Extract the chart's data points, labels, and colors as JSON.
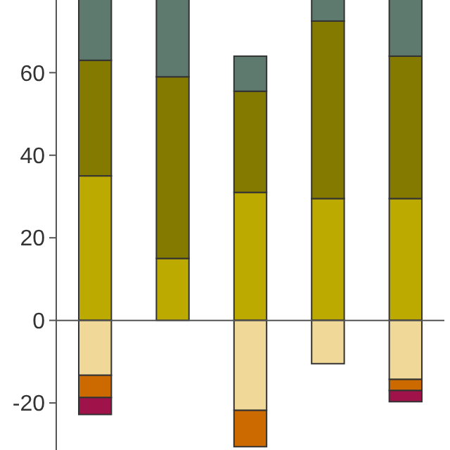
{
  "chart_data": {
    "type": "bar",
    "stacked": true,
    "categories": [
      null,
      null,
      null,
      null,
      null
    ],
    "series": [
      {
        "color": "#bdaa00",
        "values": [
          35,
          15,
          31,
          29.5,
          29.5
        ]
      },
      {
        "color": "#857a00",
        "values": [
          28,
          44,
          24.5,
          43,
          34.5
        ]
      },
      {
        "color": "#5e7a6e",
        "values": [
          14.8,
          18.8,
          8.5,
          5.3,
          13.8
        ]
      },
      {
        "color": "#f0d898",
        "values": [
          -13.3,
          null,
          -21.8,
          -10.5,
          -14.3
        ]
      },
      {
        "color": "#cc6a00",
        "values": [
          -5.4,
          null,
          -8.8,
          null,
          -2.7
        ]
      },
      {
        "color": "#a0124a",
        "values": [
          -4.1,
          null,
          null,
          null,
          -2.7
        ]
      }
    ],
    "ylim": [
      -31.4,
      77.6
    ],
    "yticks": [
      -20,
      0,
      20,
      40,
      60
    ]
  }
}
